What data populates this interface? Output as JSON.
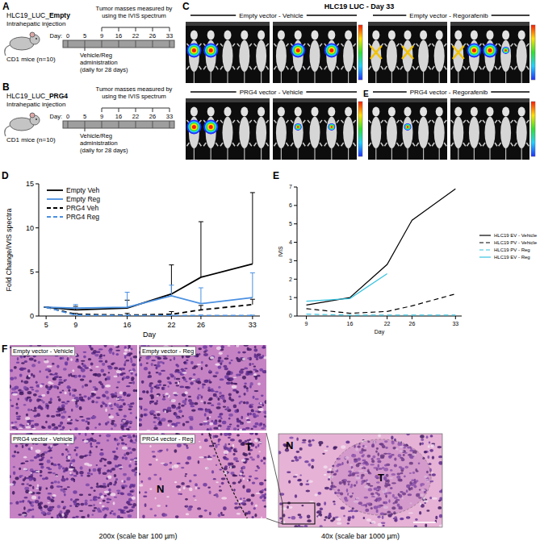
{
  "panel_a": {
    "label": "A",
    "line": "HLC19_LUC_",
    "vector": "Empty",
    "injection": "Intrahepatic injection",
    "mice": "CD1 mice (n=10)",
    "measure": "Tumor masses measured by using the IVIS spectrum",
    "day_label": "Day:",
    "days": [
      0,
      5,
      9,
      16,
      22,
      26,
      33
    ],
    "treatment": [
      "Vehicle/Reg",
      "administration",
      "(daily for 28 days)"
    ]
  },
  "panel_b": {
    "label": "B",
    "line": "HLC19_LUC_",
    "vector": "PRG4",
    "injection": "Intrahepatic injection",
    "mice": "CD1 mice (n=10)",
    "measure": "Tumor masses measured by using the IVIS spectrum",
    "day_label": "Day:",
    "days": [
      0,
      5,
      9,
      16,
      22,
      26,
      33
    ],
    "treatment": [
      "Vehicle/Reg",
      "administration",
      "(daily for 28 days)"
    ]
  },
  "panel_c": {
    "label": "C",
    "title": "HLC19 LUC - Day 33",
    "inset_label": "E",
    "groups": [
      {
        "label": "Empty vector - Vehicle",
        "signal": [
          2,
          2,
          0,
          0,
          0,
          0,
          2,
          0,
          2,
          0
        ],
        "excluded": []
      },
      {
        "label": "Empty vector - Regorafenib",
        "signal": [
          0,
          0,
          0,
          0,
          0,
          0,
          2,
          2,
          1,
          0
        ],
        "excluded": [
          0,
          2,
          5
        ]
      },
      {
        "label": "PRG4 vector - Vehicle",
        "signal": [
          2,
          2,
          0,
          0,
          0,
          0,
          1,
          0,
          1,
          0
        ],
        "excluded": []
      },
      {
        "label": "PRG4 vector - Regorafenib",
        "signal": [
          0,
          0,
          1,
          0,
          0,
          0,
          0,
          0,
          0,
          0
        ],
        "excluded": []
      }
    ]
  },
  "chart_data": [
    {
      "type": "line",
      "panel_label": "D",
      "x_label": "Day",
      "y_label": "Fold Change/IVIS spectra",
      "x": [
        5,
        9,
        16,
        22,
        26,
        33
      ],
      "xlim": [
        4,
        34
      ],
      "xticks": [
        5,
        9,
        16,
        22,
        26,
        33
      ],
      "ylim": [
        0,
        15
      ],
      "yticks": [
        0,
        5,
        10,
        15
      ],
      "legend": "top-left",
      "series": [
        {
          "name": "Empty Veh",
          "color": "#000000",
          "line_style": "solid",
          "values": [
            1,
            0.7,
            0.9,
            2.5,
            4.4,
            5.9
          ],
          "errors": [
            0,
            0.4,
            0.9,
            3.3,
            6.3,
            8.1
          ]
        },
        {
          "name": "Empty Reg",
          "color": "#4a90e2",
          "line_style": "solid",
          "values": [
            1,
            0.9,
            1.0,
            2.3,
            1.4,
            2.1
          ],
          "errors": [
            0,
            0.4,
            1.7,
            1.2,
            1.8,
            2.8
          ]
        },
        {
          "name": "PRG4 Veh",
          "color": "#000000",
          "line_style": "dashed",
          "values": [
            1,
            0.2,
            0.1,
            0.2,
            0.7,
            1.3
          ],
          "errors": [
            0,
            0.1,
            0.2,
            0.3,
            0.5,
            0.6
          ]
        },
        {
          "name": "PRG4 Reg",
          "color": "#4a90e2",
          "line_style": "dashed",
          "values": [
            1,
            0.1,
            0.05,
            0.05,
            0.05,
            0.05
          ],
          "errors": [
            0,
            0.05,
            0.05,
            0.05,
            0.05,
            0.05
          ]
        }
      ]
    },
    {
      "type": "line",
      "panel_label": "E",
      "x_label": "Day",
      "y_label": "IVIS",
      "x": [
        9,
        16,
        22,
        26,
        33
      ],
      "xlim": [
        7.5,
        34
      ],
      "xticks": [
        9,
        16,
        22,
        26,
        33
      ],
      "ylim": [
        0,
        7
      ],
      "yticks": [
        0,
        1,
        2,
        3,
        4,
        5,
        6,
        7
      ],
      "legend": "right",
      "series": [
        {
          "name": "HLC19 EV - Vehicle",
          "color": "#000000",
          "line_style": "solid",
          "values": [
            0.6,
            1.0,
            2.8,
            5.2,
            6.9
          ]
        },
        {
          "name": "HLC19 PV - Vehicle",
          "color": "#000000",
          "line_style": "dashed",
          "values": [
            0.4,
            0.15,
            0.25,
            0.55,
            1.2
          ]
        },
        {
          "name": "HLC19 PV - Reg",
          "color": "#35c4e0",
          "line_style": "dashed",
          "values": [
            0.1,
            0.05,
            0.05,
            0.05,
            0.05
          ]
        },
        {
          "name": "HLC19 EV - Reg",
          "color": "#35c4e0",
          "line_style": "solid",
          "values": [
            0.8,
            0.95,
            2.3,
            null,
            null
          ]
        }
      ]
    }
  ],
  "panel_f": {
    "label": "F",
    "tiles": [
      "Empty vector - Vehicle",
      "Empty vector - Reg",
      "PRG4 vector - Vehicle",
      "PRG4 vector - Reg"
    ],
    "tumor": "T",
    "normal": "N",
    "caption_200x": "200x (scale bar 100 µm)",
    "caption_40x": "40x (scale bar 1000 µm)"
  }
}
